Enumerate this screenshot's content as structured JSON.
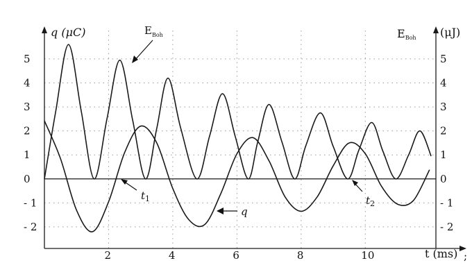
{
  "chart_data": {
    "type": "line",
    "title": "",
    "x": {
      "label": "t (ms)",
      "ticks": [
        2,
        4,
        6,
        8,
        10
      ],
      "range": [
        0,
        12.2
      ],
      "grid": true
    },
    "y_left": {
      "label": "q (μC)",
      "ticks": [
        5,
        4,
        3,
        2,
        1,
        0,
        -1,
        -2
      ],
      "tick_labels": [
        "5",
        "4",
        "3",
        "2",
        "1",
        "0",
        "- 1",
        "- 2"
      ],
      "range": [
        -2.9,
        6.3
      ]
    },
    "y_right": {
      "label_main": "E",
      "label_sub": "Boh",
      "label_unit": "(μJ)",
      "ticks": [
        5,
        4,
        3,
        2,
        1,
        0,
        -1,
        -2
      ],
      "tick_labels": [
        "5",
        "4",
        "3",
        "2",
        "1",
        "0",
        "- 1",
        "- 2"
      ],
      "range": [
        -2.9,
        6.3
      ]
    },
    "series": [
      {
        "name": "q",
        "axis": "left",
        "description_values": "damped cosine q(t)",
        "x": [
          0,
          0.5,
          1.0,
          1.5,
          2.0,
          2.5,
          3.0,
          3.5,
          4.0,
          4.5,
          5.0,
          5.5,
          6.0,
          6.5,
          7.0,
          7.5,
          8.0,
          8.5,
          9.0,
          9.5,
          10.0,
          10.5,
          11.0,
          11.5,
          12.0
        ],
        "y": [
          2.42,
          0.85,
          -1.3,
          -2.2,
          -0.95,
          1.1,
          2.2,
          1.5,
          -0.4,
          -1.7,
          -1.9,
          -0.6,
          1.05,
          1.72,
          0.75,
          -0.75,
          -1.35,
          -0.75,
          0.55,
          1.5,
          1.05,
          -0.3,
          -1.05,
          -0.9,
          0.38
        ]
      },
      {
        "name": "E",
        "axis": "right",
        "description_values": "energy oscillating at twice the frequency, decaying",
        "x": [
          0,
          0.35,
          0.75,
          1.15,
          1.55,
          1.95,
          2.35,
          2.75,
          3.15,
          3.5,
          3.85,
          4.25,
          4.75,
          5.15,
          5.55,
          5.95,
          6.35,
          6.65,
          7.0,
          7.4,
          7.8,
          8.15,
          8.6,
          9.0,
          9.45,
          9.8,
          10.2,
          10.55,
          10.95,
          11.35,
          11.7,
          12.05
        ],
        "y": [
          0,
          2.8,
          5.6,
          2.8,
          0,
          2.5,
          4.95,
          2.45,
          0,
          2.1,
          4.2,
          2.1,
          0,
          1.8,
          3.55,
          1.75,
          0,
          1.55,
          3.1,
          1.55,
          0,
          1.4,
          2.75,
          1.35,
          0,
          1.2,
          2.35,
          1.15,
          0,
          1.0,
          2.0,
          0.95
        ]
      }
    ],
    "annotations": {
      "e_label": {
        "main": "E",
        "sub": "Boh"
      },
      "q_label": "q",
      "t1": {
        "base": "t",
        "sub": "1"
      },
      "t2": {
        "base": "t",
        "sub": "2"
      }
    },
    "colors": {
      "line": "#1a1a1a",
      "grid": "#9a9a9a",
      "background": "#ffffff"
    }
  }
}
